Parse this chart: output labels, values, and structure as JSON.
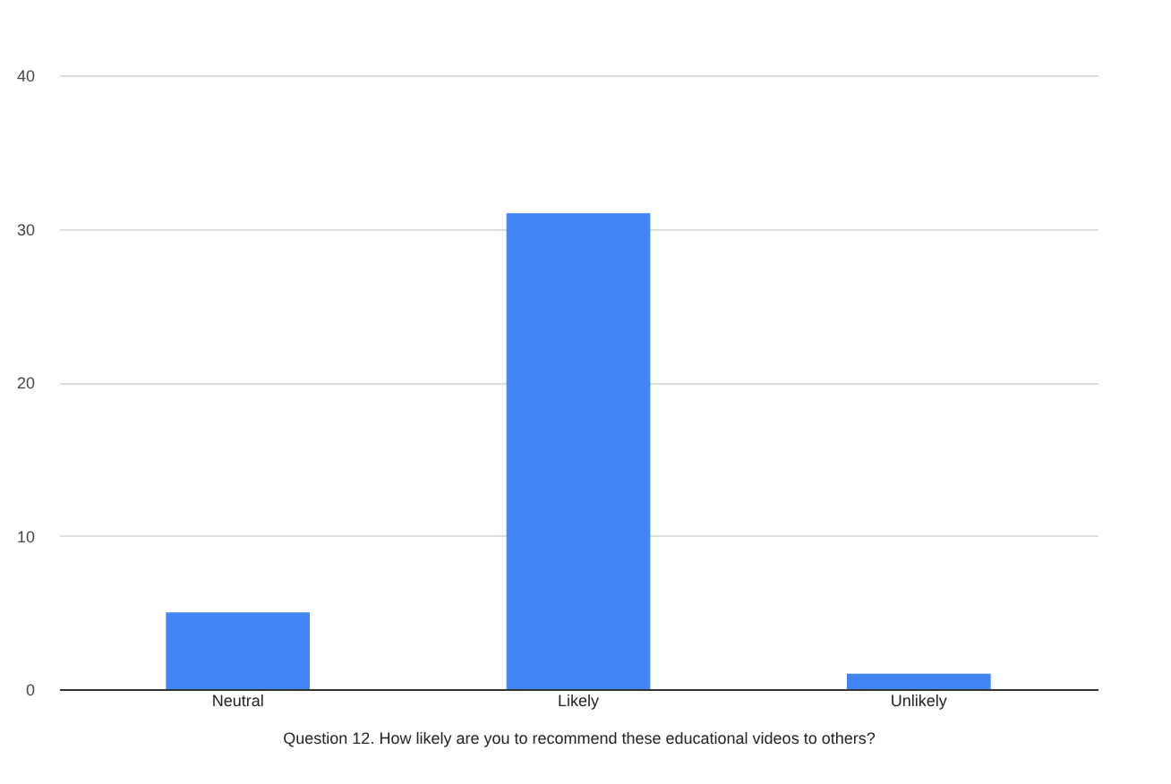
{
  "chart_data": {
    "type": "bar",
    "xlabel": "Question 12. How likely are you to recommend these educational videos to others?",
    "categories": [
      "Neutral",
      "Likely",
      "Unlikely"
    ],
    "values": [
      5,
      31,
      1
    ],
    "color": "#4285f4",
    "ylim": [
      0,
      40
    ],
    "yticks": [
      0,
      10,
      20,
      30,
      40
    ],
    "grid": "y"
  }
}
